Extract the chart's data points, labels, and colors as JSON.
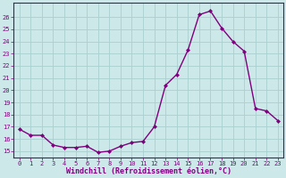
{
  "x": [
    0,
    1,
    2,
    3,
    4,
    5,
    6,
    7,
    8,
    9,
    10,
    11,
    12,
    13,
    14,
    15,
    16,
    17,
    18,
    19,
    20,
    21,
    22,
    23
  ],
  "y": [
    16.8,
    16.3,
    16.3,
    15.5,
    15.3,
    15.3,
    15.4,
    14.9,
    15.0,
    15.4,
    15.7,
    15.8,
    17.0,
    20.4,
    21.3,
    23.3,
    26.2,
    26.5,
    25.1,
    24.0,
    23.2,
    18.5,
    18.3,
    17.5
  ],
  "line_color": "#800080",
  "marker": "D",
  "marker_size": 2,
  "bg_color": "#cce8e8",
  "grid_color": "#aacfcf",
  "xlabel": "Windchill (Refroidissement éolien,°C)",
  "xlim": [
    -0.5,
    23.5
  ],
  "ylim": [
    14.5,
    27.2
  ],
  "yticks": [
    15,
    16,
    17,
    18,
    19,
    20,
    21,
    22,
    23,
    24,
    25,
    26
  ],
  "xticks": [
    0,
    1,
    2,
    3,
    4,
    5,
    6,
    7,
    8,
    9,
    10,
    11,
    12,
    13,
    14,
    15,
    16,
    17,
    18,
    19,
    20,
    21,
    22,
    23
  ],
  "tick_color": "#800080",
  "label_color": "#800080",
  "spine_color": "#800080",
  "xlabel_fontsize": 6,
  "tick_fontsize": 5,
  "linewidth": 1.0
}
